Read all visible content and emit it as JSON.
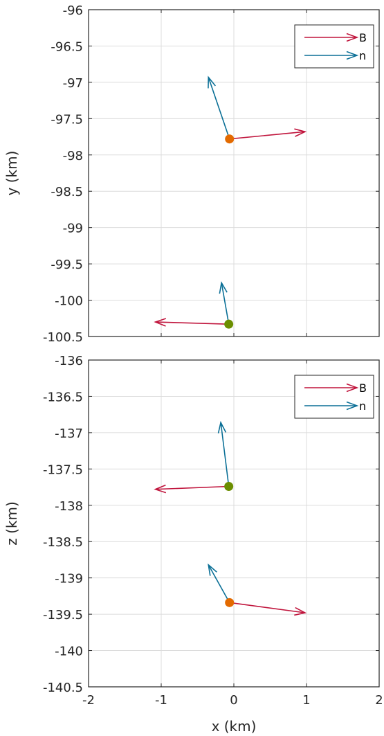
{
  "chart_data": [
    {
      "type": "scatter",
      "title": "",
      "xlabel": "",
      "ylabel": "y (km)",
      "xlim": [
        -2,
        2
      ],
      "ylim": [
        -100.5,
        -96
      ],
      "xticks": [
        -2,
        -1,
        0,
        1,
        2
      ],
      "xtick_labels_shown": false,
      "yticks": [
        -96,
        -96.5,
        -97,
        -97.5,
        -98,
        -98.5,
        -99,
        -99.5,
        -100,
        -100.5
      ],
      "ytick_labels": [
        "-96",
        "-96.5",
        "-97",
        "-97.5",
        "-98",
        "-98.5",
        "-99",
        "-99.5",
        "-100",
        "-100.5"
      ],
      "grid": true,
      "legend_position": "top-right",
      "legend": [
        {
          "label": "B",
          "color": "#c0143c"
        },
        {
          "label": "n",
          "color": "#0a6f96"
        }
      ],
      "points": [
        {
          "x": -0.06,
          "y": -97.78,
          "color": "#e36a00",
          "B": {
            "x": 0.98,
            "y": -97.68
          },
          "n": {
            "x": -0.35,
            "y": -96.93
          }
        },
        {
          "x": -0.07,
          "y": -100.33,
          "color": "#6b8e00",
          "B": {
            "x": -1.08,
            "y": -100.3
          },
          "n": {
            "x": -0.17,
            "y": -99.76
          }
        }
      ]
    },
    {
      "type": "scatter",
      "title": "",
      "xlabel": "x (km)",
      "ylabel": "z (km)",
      "xlim": [
        -2,
        2
      ],
      "ylim": [
        -140.5,
        -136
      ],
      "xticks": [
        -2,
        -1,
        0,
        1,
        2
      ],
      "xtick_labels": [
        "-2",
        "-1",
        "0",
        "1",
        "2"
      ],
      "xtick_labels_shown": true,
      "yticks": [
        -136,
        -136.5,
        -137,
        -137.5,
        -138,
        -138.5,
        -139,
        -139.5,
        -140,
        -140.5
      ],
      "ytick_labels": [
        "-136",
        "-136.5",
        "-137",
        "-137.5",
        "-138",
        "-138.5",
        "-139",
        "-139.5",
        "-140",
        "-140.5"
      ],
      "grid": true,
      "legend_position": "top-right",
      "legend": [
        {
          "label": "B",
          "color": "#c0143c"
        },
        {
          "label": "n",
          "color": "#0a6f96"
        }
      ],
      "points": [
        {
          "x": -0.07,
          "y": -137.74,
          "color": "#6b8e00",
          "B": {
            "x": -1.08,
            "y": -137.78
          },
          "n": {
            "x": -0.18,
            "y": -136.86
          }
        },
        {
          "x": -0.06,
          "y": -139.34,
          "color": "#e36a00",
          "B": {
            "x": 0.98,
            "y": -139.48
          },
          "n": {
            "x": -0.35,
            "y": -138.82
          }
        }
      ]
    }
  ]
}
